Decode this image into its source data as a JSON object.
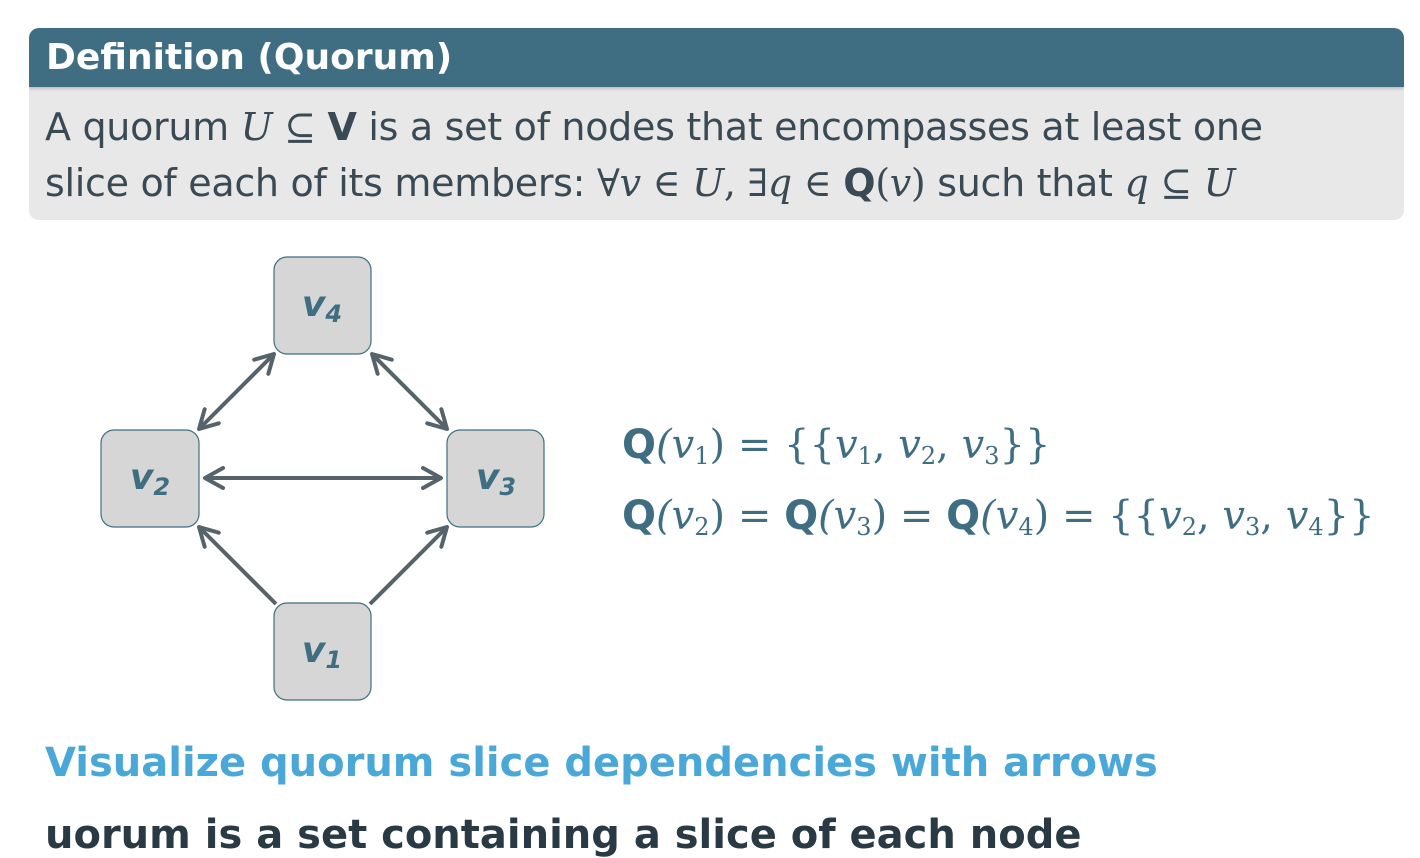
{
  "definition": {
    "title": "Definition (Quorum)",
    "line1": {
      "t1": "A quorum ",
      "U": "U",
      "subset": " ⊆ ",
      "V": "V",
      "t2": " is a set of nodes that encompasses at least one"
    },
    "line2": {
      "t1": "slice of each of its members: ",
      "forall": "∀",
      "v": "v",
      "in1": " ∈ ",
      "U": "U",
      "comma": ", ",
      "exists": "∃",
      "q": "q",
      "in2": " ∈ ",
      "Q": "Q",
      "lparen": "(",
      "v2": "v",
      "rparen": ")",
      "t2": " such that ",
      "q2": "q",
      "subset": " ⊆ ",
      "U2": "U"
    }
  },
  "diagram": {
    "nodes": [
      {
        "id": "v4",
        "label": "v",
        "sub": "4"
      },
      {
        "id": "v2",
        "label": "v",
        "sub": "2"
      },
      {
        "id": "v3",
        "label": "v",
        "sub": "3"
      },
      {
        "id": "v1",
        "label": "v",
        "sub": "1"
      }
    ],
    "edges": [
      {
        "from": "v2",
        "to": "v4",
        "bidirectional": true
      },
      {
        "from": "v4",
        "to": "v3",
        "bidirectional": true
      },
      {
        "from": "v2",
        "to": "v3",
        "bidirectional": true
      },
      {
        "from": "v1",
        "to": "v2",
        "bidirectional": false
      },
      {
        "from": "v1",
        "to": "v3",
        "bidirectional": false
      }
    ]
  },
  "formulas": {
    "f1": {
      "Q": "Q",
      "arg": "(v",
      "argsub": "1",
      "close": ") = {{",
      "a": "v",
      "asub": "1",
      "sep1": ", ",
      "b": "v",
      "bsub": "2",
      "sep2": ", ",
      "c": "v",
      "csub": "3",
      "end": "}}"
    },
    "f2": {
      "Q1": "Q",
      "arg1": "(v",
      "arg1sub": "2",
      "mid1": ") = ",
      "Q2": "Q",
      "arg2": "(v",
      "arg2sub": "3",
      "mid2": ") = ",
      "Q3": "Q",
      "arg3": "(v",
      "arg3sub": "4",
      "close": ") = {{",
      "a": "v",
      "asub": "2",
      "sep1": ", ",
      "b": "v",
      "bsub": "3",
      "sep2": ", ",
      "c": "v",
      "csub": "4",
      "end": "}}"
    }
  },
  "headline": "Visualize quorum slice dependencies with arrows",
  "cutoff_text": "uorum is a set containing a slice of each node",
  "colors": {
    "header_bg": "#3f6e83",
    "box_bg": "#e8e8e8",
    "node_fill": "#d6d6d6",
    "accent": "#4aa8d8",
    "edge": "#56636b"
  }
}
